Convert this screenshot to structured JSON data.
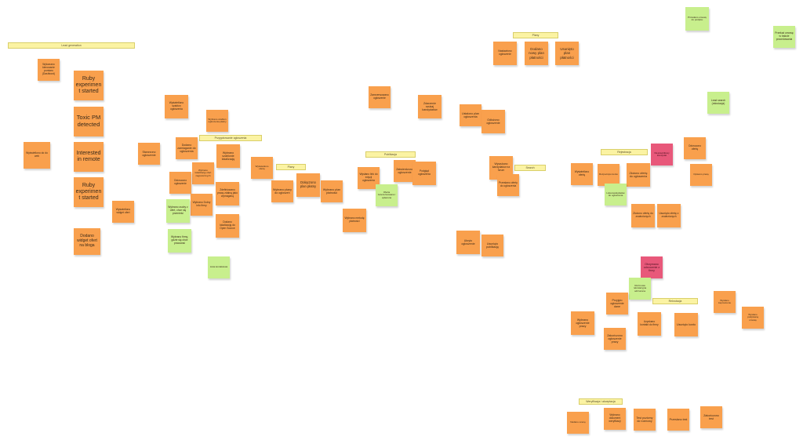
{
  "board": {
    "colors": {
      "orange": "#f9a04d",
      "green": "#c8ef8d",
      "pink": "#e8587a",
      "label": "#fbf3a3"
    },
    "labels": [
      {
        "text": "Lead generation"
      },
      {
        "text": "Plany"
      },
      {
        "text": "Przygotowanie ogłoszenia"
      },
      {
        "text": "Plany"
      },
      {
        "text": "Publikacja"
      },
      {
        "text": "Search"
      },
      {
        "text": "Rejestracja"
      },
      {
        "text": "Rekrutacja"
      },
      {
        "text": "Weryfikacja i akceptacja"
      }
    ],
    "notes": [
      {
        "text": "Wykonano kierowanie pomiaru (Dashbord)",
        "color": "orange"
      },
      {
        "text": "Ruby experiment started",
        "color": "orange"
      },
      {
        "text": "Toxic PM detected",
        "color": "orange"
      },
      {
        "text": "Interested in remote",
        "color": "orange"
      },
      {
        "text": "Ruby experiment started",
        "color": "orange"
      },
      {
        "text": "Dodano widget ofert na bloga",
        "color": "orange"
      },
      {
        "text": "Wyświetlono do do web",
        "color": "orange"
      },
      {
        "text": "Wyświetlono widget ofert",
        "color": "orange"
      },
      {
        "text": "Wyświetlono szablon ogłoszenia",
        "color": "orange"
      },
      {
        "text": "Wybrano szablon ogłoszenia płatny",
        "color": "orange"
      },
      {
        "text": "Stworzono ogłoszenie",
        "color": "orange"
      },
      {
        "text": "Dodano zamiaganie do ogłoszenia",
        "color": "orange"
      },
      {
        "text": "Wybrano lokalizację ofert zagranicznych",
        "color": "orange"
      },
      {
        "text": "Wybrano szablonie lokalizację",
        "color": "orange"
      },
      {
        "text": "Odrzucono ogłoszenie",
        "color": "orange"
      },
      {
        "text": "Wybrano Dobry info firmy",
        "color": "orange"
      },
      {
        "text": "Zdefiniowano pracę zdalną jako wymaganą",
        "color": "orange"
      },
      {
        "text": "Wybrano osoby z ofert, chce się przenieść",
        "color": "green"
      },
      {
        "text": "Wybrano firmy, gdzie się chce pracować",
        "color": "green"
      },
      {
        "text": "Dodano lokalizację do Open Source",
        "color": "orange"
      },
      {
        "text": "Lista kontaktowa",
        "color": "green"
      },
      {
        "text": "Wyświetlono ofertę",
        "color": "orange"
      },
      {
        "text": "Wybrano plany do ogłoszeń",
        "color": "orange"
      },
      {
        "text": "Dołączono plan płatny",
        "color": "orange"
      },
      {
        "text": "Wybrano plan płatności",
        "color": "orange"
      },
      {
        "text": "Wybrano metodę płatności",
        "color": "orange"
      },
      {
        "text": "Zarezerwowano ogłoszenie",
        "color": "orange"
      },
      {
        "text": "Zdarzenie szukaj kandydatów",
        "color": "orange"
      },
      {
        "text": "Wysłano link do edycji ogłoszenia",
        "color": "orange"
      },
      {
        "text": "Zatwierdzono ogłoszenie",
        "color": "orange"
      },
      {
        "text": "Podgląd ogłoszenia",
        "color": "orange"
      },
      {
        "text": "Oferta zarezerwowana i opłacona",
        "color": "green"
      },
      {
        "text": "Ustalono plan ogłoszenia",
        "color": "orange"
      },
      {
        "text": "Odłożono ogłoszenie",
        "color": "orange"
      },
      {
        "text": "Nastawiono ogłoszenie",
        "color": "orange"
      },
      {
        "text": "Dodano nowy plan płatności",
        "color": "orange"
      },
      {
        "text": "Usunięto plan płatności",
        "color": "orange"
      },
      {
        "text": "Wyszukano kandydatów na forum",
        "color": "orange"
      },
      {
        "text": "Przesłano oferty do ogłoszenia",
        "color": "orange"
      },
      {
        "text": "Ukryto ogłoszenie",
        "color": "orange"
      },
      {
        "text": "Usunięto publikację",
        "color": "orange"
      },
      {
        "text": "Wyświetlono ofertę",
        "color": "orange"
      },
      {
        "text": "Rozpoczęto konto",
        "color": "orange"
      },
      {
        "text": "Złożono ofertę do ogłoszenia",
        "color": "orange"
      },
      {
        "text": "Lista kandydatów do ogłoszenia",
        "color": "green"
      },
      {
        "text": "Odrzucono ofertę",
        "color": "orange"
      },
      {
        "text": "Nieprawidłowy kandydat",
        "color": "pink"
      },
      {
        "text": "Opisano pracę",
        "color": "orange"
      },
      {
        "text": "Złożono ofertę do znalezionych",
        "color": "orange"
      },
      {
        "text": "Usunięto ofertę z znalezionych",
        "color": "orange"
      },
      {
        "text": "Lead search (rekrutacja)",
        "color": "green"
      },
      {
        "text": "Przesłano umowę do podpisu",
        "color": "green"
      },
      {
        "text": "Przekaż umowę w trakcie procedowania",
        "color": "green"
      },
      {
        "text": "Otrzymano odrzucenie z firmy",
        "color": "pink"
      },
      {
        "text": "Rozmowa rekrutacyjna odrzucona",
        "color": "green"
      },
      {
        "text": "Wysłano zaproszenie",
        "color": "orange"
      },
      {
        "text": "Przyjęto ogłoszenie dane",
        "color": "orange"
      },
      {
        "text": "Wybrano ogłoszenie pracy",
        "color": "orange"
      },
      {
        "text": "Zakończono ogłoszenie pracy",
        "color": "orange"
      },
      {
        "text": "Uzyskano kontakt do firmy",
        "color": "orange"
      },
      {
        "text": "Usunięto konto",
        "color": "orange"
      },
      {
        "text": "Wysłano podpisaną umowę",
        "color": "orange"
      },
      {
        "text": "Nadano ocenę",
        "color": "orange"
      },
      {
        "text": "Wybrano dokument weryfikacji",
        "color": "orange"
      },
      {
        "text": "Test poziomy do rozmowy",
        "color": "orange"
      },
      {
        "text": "Przesłano test",
        "color": "orange"
      },
      {
        "text": "Zakończono test",
        "color": "orange"
      },
      {
        "text": "Otrzymano wynik testu",
        "color": "orange"
      }
    ]
  }
}
